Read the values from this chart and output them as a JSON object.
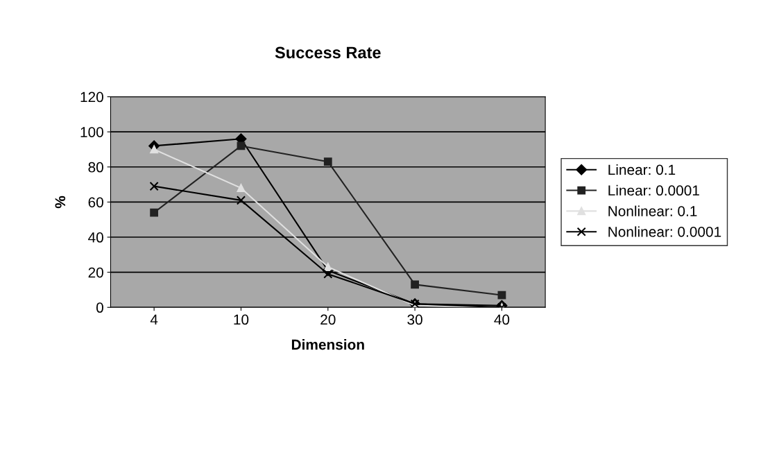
{
  "chart_data": {
    "type": "line",
    "title": "Success Rate",
    "xlabel": "Dimension",
    "ylabel": "%",
    "categories": [
      "4",
      "10",
      "20",
      "30",
      "40"
    ],
    "series": [
      {
        "name": "Linear: 0.1",
        "color": "#000000",
        "marker": "diamond",
        "values": [
          92,
          96,
          21,
          2,
          1
        ]
      },
      {
        "name": "Linear: 0.0001",
        "color": "#222222",
        "marker": "square",
        "values": [
          54,
          92,
          83,
          13,
          7
        ]
      },
      {
        "name": "Nonlinear: 0.1",
        "color": "#e0e0e0",
        "marker": "triangle",
        "values": [
          90,
          68,
          23,
          1,
          0
        ]
      },
      {
        "name": "Nonlinear: 0.0001",
        "color": "#000000",
        "marker": "cross",
        "values": [
          69,
          61,
          19,
          2,
          0
        ]
      }
    ],
    "ylim": [
      0,
      120
    ],
    "yticks": [
      0,
      20,
      40,
      60,
      80,
      100,
      120
    ],
    "grid": "y",
    "legend": "right"
  }
}
